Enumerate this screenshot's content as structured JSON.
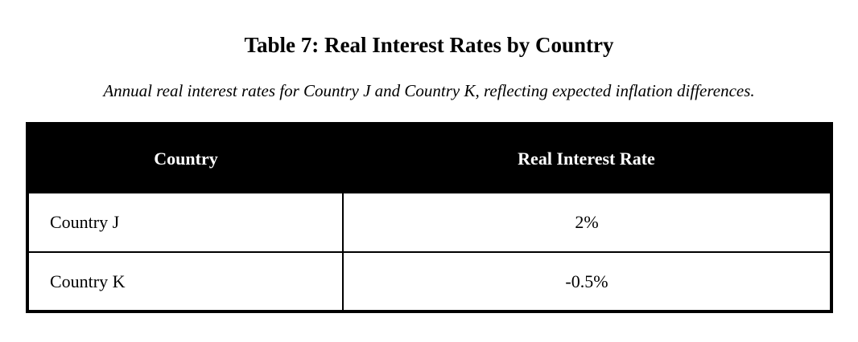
{
  "page": {
    "title": "Table 7: Real Interest Rates by Country",
    "subtitle": "Annual real interest rates for Country J and Country K, reflecting expected inflation differences."
  },
  "table": {
    "headers": [
      "Country",
      "Real Interest Rate"
    ],
    "rows": [
      {
        "country": "Country J",
        "rate": "2%"
      },
      {
        "country": "Country K",
        "rate": "-0.5%"
      }
    ]
  },
  "colors": {
    "header_bg": "#000000",
    "header_text": "#ffffff",
    "border": "#000000",
    "page_bg": "#ffffff",
    "text": "#000000"
  }
}
